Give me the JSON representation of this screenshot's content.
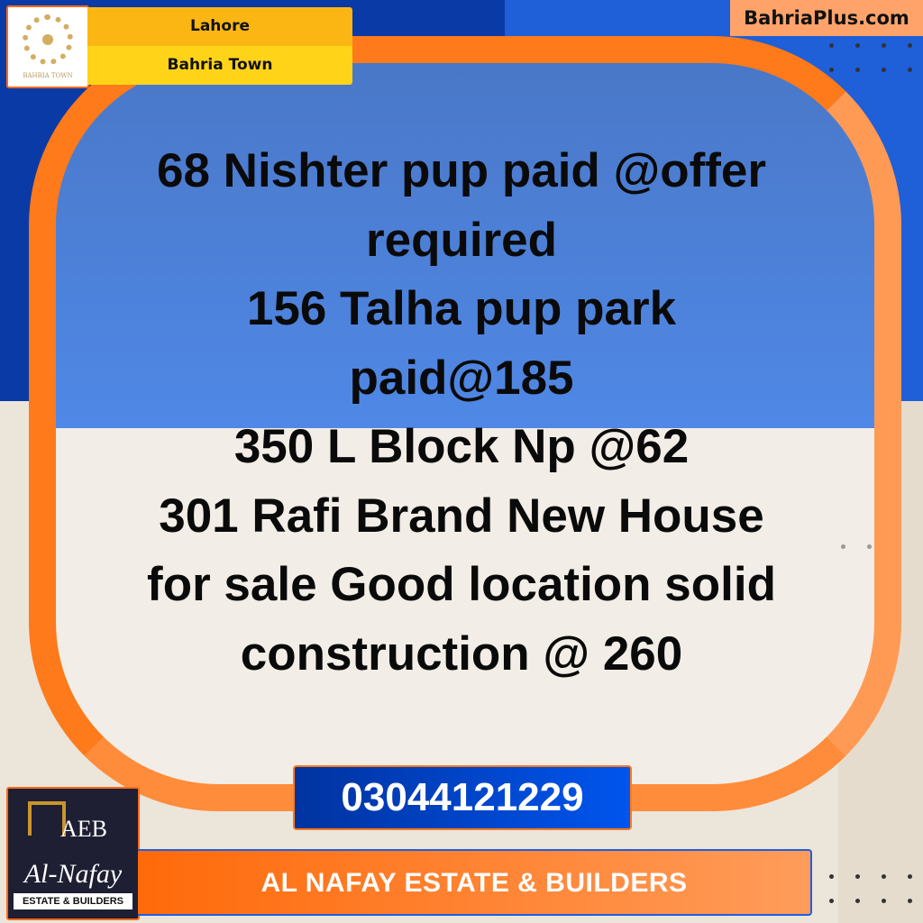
{
  "header": {
    "logo_text": "BAHRIA TOWN",
    "city": "Lahore",
    "area": "Bahria Town",
    "site": "BahriaPlus.com"
  },
  "listing": {
    "lines": [
      "68 Nishter pup paid @offer",
      "required",
      "156 Talha pup park",
      "paid@185",
      "350 L Block Np @62",
      "301 Rafi Brand New House",
      "for sale Good location solid",
      "construction @ 260"
    ]
  },
  "contact": {
    "phone": "03044121229"
  },
  "company": {
    "logo_initials": "AEB",
    "logo_name": "Al-Nafay",
    "logo_tagline": "ESTATE & BUILDERS",
    "name": "AL NAFAY ESTATE & BUILDERS"
  },
  "colors": {
    "accent_orange": "#ff7a1a",
    "blue": "#0a3aa6",
    "yellow": "#ffd418"
  }
}
